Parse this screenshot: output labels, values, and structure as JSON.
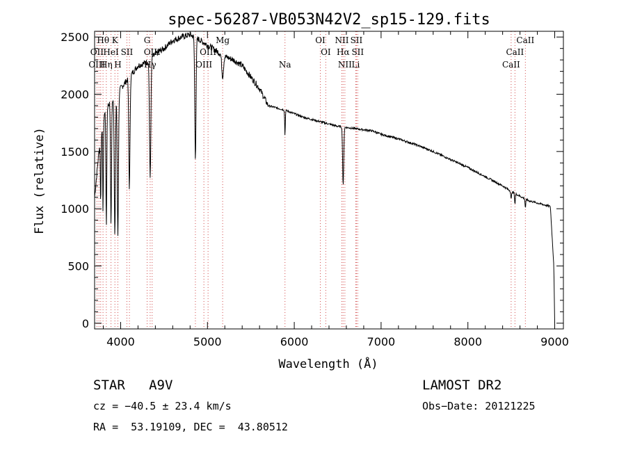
{
  "chart_data": {
    "type": "line",
    "title": "spec-56287-VB053N42V2_sp15-129.fits",
    "xlabel": "Wavelength (Å)",
    "ylabel": "Flux (relative)",
    "xlim": [
      3700,
      9100
    ],
    "ylim": [
      -50,
      2550
    ],
    "xticks": [
      4000,
      5000,
      6000,
      7000,
      8000,
      9000
    ],
    "yticks": [
      0,
      500,
      1000,
      1500,
      2000,
      2500
    ],
    "continuum": [
      [
        3700,
        1100
      ],
      [
        3750,
        1500
      ],
      [
        3800,
        1800
      ],
      [
        3850,
        1900
      ],
      [
        3900,
        1950
      ],
      [
        3950,
        2000
      ],
      [
        4000,
        2050
      ],
      [
        4100,
        2150
      ],
      [
        4200,
        2250
      ],
      [
        4300,
        2280
      ],
      [
        4400,
        2350
      ],
      [
        4500,
        2400
      ],
      [
        4600,
        2470
      ],
      [
        4700,
        2500
      ],
      [
        4800,
        2520
      ],
      [
        4900,
        2480
      ],
      [
        5000,
        2430
      ],
      [
        5100,
        2380
      ],
      [
        5200,
        2330
      ],
      [
        5300,
        2300
      ],
      [
        5400,
        2250
      ],
      [
        5500,
        2150
      ],
      [
        5600,
        2050
      ],
      [
        5700,
        1900
      ],
      [
        5800,
        1880
      ],
      [
        5900,
        1860
      ],
      [
        6000,
        1830
      ],
      [
        6100,
        1800
      ],
      [
        6200,
        1780
      ],
      [
        6300,
        1760
      ],
      [
        6400,
        1740
      ],
      [
        6500,
        1720
      ],
      [
        6600,
        1710
      ],
      [
        6700,
        1700
      ],
      [
        6800,
        1690
      ],
      [
        6900,
        1680
      ],
      [
        7000,
        1650
      ],
      [
        7200,
        1610
      ],
      [
        7400,
        1560
      ],
      [
        7600,
        1500
      ],
      [
        7800,
        1430
      ],
      [
        8000,
        1360
      ],
      [
        8200,
        1280
      ],
      [
        8400,
        1200
      ],
      [
        8500,
        1150
      ],
      [
        8600,
        1110
      ],
      [
        8700,
        1070
      ],
      [
        8800,
        1050
      ],
      [
        8900,
        1030
      ],
      [
        8950,
        1020
      ],
      [
        8990,
        500
      ],
      [
        9000,
        0
      ]
    ],
    "absorption_lines": [
      {
        "center": 3770,
        "depth": 0.35,
        "width": 6
      },
      {
        "center": 3797,
        "depth": 0.45,
        "width": 6
      },
      {
        "center": 3835,
        "depth": 0.55,
        "width": 7
      },
      {
        "center": 3889,
        "depth": 0.55,
        "width": 8
      },
      {
        "center": 3933,
        "depth": 0.62,
        "width": 9
      },
      {
        "center": 3968,
        "depth": 0.62,
        "width": 10
      },
      {
        "center": 4101,
        "depth": 0.45,
        "width": 10
      },
      {
        "center": 4340,
        "depth": 0.45,
        "width": 11
      },
      {
        "center": 4861,
        "depth": 0.42,
        "width": 10
      },
      {
        "center": 5175,
        "depth": 0.08,
        "width": 14
      },
      {
        "center": 5893,
        "depth": 0.12,
        "width": 5
      },
      {
        "center": 6563,
        "depth": 0.3,
        "width": 9
      },
      {
        "center": 8498,
        "depth": 0.06,
        "width": 6
      },
      {
        "center": 8542,
        "depth": 0.08,
        "width": 6
      },
      {
        "center": 8662,
        "depth": 0.07,
        "width": 6
      }
    ],
    "lines": [
      {
        "label": "Hθ",
        "wavelength": 3798,
        "row": 0
      },
      {
        "label": "K",
        "wavelength": 3934,
        "row": 0
      },
      {
        "label": "G",
        "wavelength": 4305,
        "row": 0
      },
      {
        "label": "Mg",
        "wavelength": 5175,
        "row": 0
      },
      {
        "label": "OI",
        "wavelength": 6300,
        "row": 0
      },
      {
        "label": "NII",
        "wavelength": 6548,
        "row": 0
      },
      {
        "label": "SII",
        "wavelength": 6716,
        "row": 0
      },
      {
        "label": "CaII",
        "wavelength": 8662,
        "row": 0
      },
      {
        "label": "OII",
        "wavelength": 3727,
        "row": 1
      },
      {
        "label": "HeI",
        "wavelength": 3889,
        "row": 1
      },
      {
        "label": "SII",
        "wavelength": 4072,
        "row": 1
      },
      {
        "label": "OIII",
        "wavelength": 4363,
        "row": 1
      },
      {
        "label": "OIII",
        "wavelength": 5007,
        "row": 1
      },
      {
        "label": "OI",
        "wavelength": 6363,
        "row": 1
      },
      {
        "label": "Hα",
        "wavelength": 6563,
        "row": 1
      },
      {
        "label": "SII",
        "wavelength": 6731,
        "row": 1
      },
      {
        "label": "CaII",
        "wavelength": 8542,
        "row": 1
      },
      {
        "label": "OIII",
        "wavelength": 3727,
        "row": 2
      },
      {
        "label": "Hη",
        "wavelength": 3835,
        "row": 2
      },
      {
        "label": "H",
        "wavelength": 3968,
        "row": 2
      },
      {
        "label": "Hγ",
        "wavelength": 4340,
        "row": 2
      },
      {
        "label": "OIII",
        "wavelength": 4959,
        "row": 2
      },
      {
        "label": "Na",
        "wavelength": 5893,
        "row": 2
      },
      {
        "label": "NII",
        "wavelength": 6583,
        "row": 2
      },
      {
        "label": "Li",
        "wavelength": 6708,
        "row": 2
      },
      {
        "label": "CaII",
        "wavelength": 8498,
        "row": 2
      }
    ],
    "line_markers": [
      3727,
      3750,
      3770,
      3797,
      3835,
      3889,
      3934,
      3968,
      4072,
      4101,
      4305,
      4340,
      4363,
      4861,
      4959,
      5007,
      5175,
      5893,
      6300,
      6363,
      6548,
      6563,
      6583,
      6708,
      6716,
      6731,
      8498,
      8542,
      8662
    ]
  },
  "info": {
    "object_class": "STAR",
    "subclass": "A9V",
    "survey": "LAMOST DR2",
    "cz": "cz = −40.5 ± 23.4 km/s",
    "obs_date": "Obs−Date: 20121225",
    "coords": "RA =  53.19109, DEC =  43.80512"
  }
}
